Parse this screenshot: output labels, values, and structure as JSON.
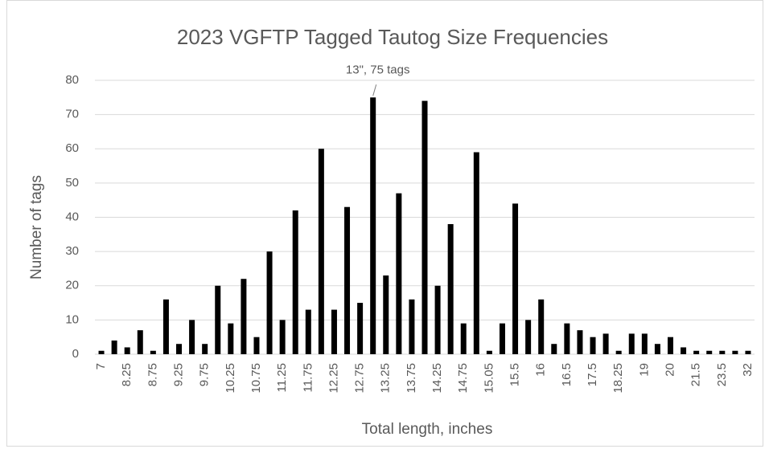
{
  "chart_data": {
    "type": "bar",
    "title": "2023 VGFTP Tagged Tautog Size Frequencies",
    "x_label": "Total length, inches",
    "y_label": "Number of tags",
    "annotation": {
      "text": "13\", 75 tags",
      "index": 21
    },
    "categories": [
      "7",
      null,
      "8.25",
      null,
      "8.75",
      null,
      "9.25",
      null,
      "9.75",
      null,
      "10.25",
      null,
      "10.75",
      null,
      "11.25",
      null,
      "11.75",
      null,
      "12.25",
      null,
      "12.75",
      null,
      "13.25",
      null,
      "13.75",
      null,
      "14.25",
      null,
      "14.75",
      null,
      "15.05",
      null,
      "15.5",
      null,
      "16",
      null,
      "16.5",
      null,
      "17.5",
      null,
      "18.25",
      null,
      "19",
      null,
      "20",
      null,
      "21.5",
      null,
      "23.5",
      null,
      "32"
    ],
    "values": [
      1,
      4,
      2,
      7,
      1,
      16,
      3,
      10,
      3,
      20,
      9,
      22,
      5,
      30,
      10,
      42,
      13,
      60,
      13,
      43,
      15,
      75,
      23,
      47,
      16,
      74,
      20,
      38,
      9,
      59,
      1,
      9,
      44,
      10,
      16,
      3,
      9,
      7,
      5,
      6,
      1,
      6,
      6,
      3,
      5,
      2,
      1,
      1,
      1,
      1,
      1
    ],
    "color": "#000000",
    "ylim": [
      0,
      80
    ],
    "yticks": [
      0,
      10,
      20,
      30,
      40,
      50,
      60,
      70,
      80
    ],
    "grid": true
  }
}
